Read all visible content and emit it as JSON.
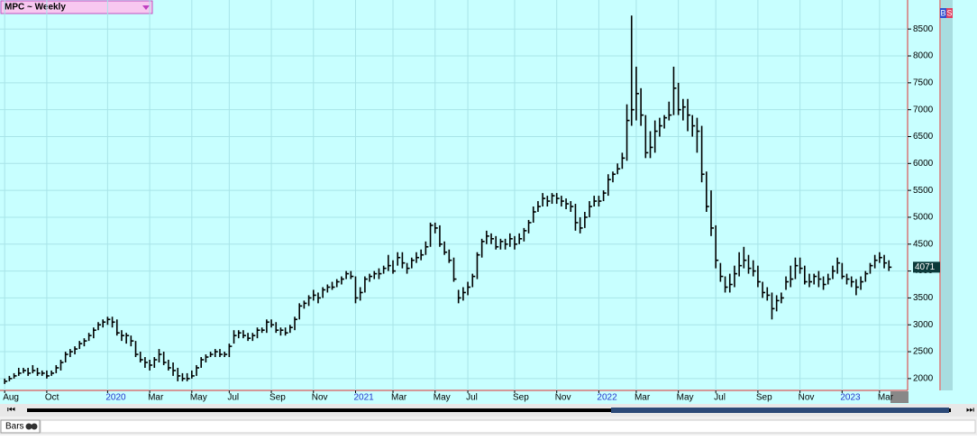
{
  "chart_data": {
    "type": "ohlc",
    "title": "MPC ~ Weekly",
    "chart_style": "Bars",
    "buttons": [
      "B",
      "S"
    ],
    "color": "#000000",
    "background": "#c8ffff",
    "year_label_color": "#2233cc",
    "grid": true,
    "ylim": [
      1780,
      9040
    ],
    "yticks": [
      2000,
      2500,
      3000,
      3500,
      4000,
      4500,
      5000,
      5500,
      6000,
      6500,
      7000,
      7500,
      8000,
      8500
    ],
    "xlim": [
      -1,
      193
    ],
    "xticks": [
      {
        "value": 0,
        "label": "Aug"
      },
      {
        "value": 9,
        "label": "Oct"
      },
      {
        "value": 22,
        "label": "2020"
      },
      {
        "value": 31,
        "label": "Mar"
      },
      {
        "value": 40,
        "label": "May"
      },
      {
        "value": 48,
        "label": "Jul"
      },
      {
        "value": 57,
        "label": "Sep"
      },
      {
        "value": 66,
        "label": "Nov"
      },
      {
        "value": 75,
        "label": "2021"
      },
      {
        "value": 83,
        "label": "Mar"
      },
      {
        "value": 92,
        "label": "May"
      },
      {
        "value": 99,
        "label": "Jul"
      },
      {
        "value": 109,
        "label": "Sep"
      },
      {
        "value": 118,
        "label": "Nov"
      },
      {
        "value": 127,
        "label": "2022"
      },
      {
        "value": 135,
        "label": "Mar"
      },
      {
        "value": 144,
        "label": "May"
      },
      {
        "value": 152,
        "label": "Jul"
      },
      {
        "value": 161,
        "label": "Sep"
      },
      {
        "value": 170,
        "label": "Nov"
      },
      {
        "value": 179,
        "label": "2023"
      },
      {
        "value": 187,
        "label": "Mar"
      }
    ],
    "high": [
      2000,
      2050,
      2100,
      2200,
      2200,
      2200,
      2250,
      2200,
      2150,
      2150,
      2150,
      2250,
      2350,
      2500,
      2550,
      2600,
      2700,
      2750,
      2850,
      2950,
      3050,
      3100,
      3150,
      3150,
      3100,
      2900,
      2850,
      2800,
      2700,
      2500,
      2400,
      2350,
      2400,
      2550,
      2500,
      2350,
      2300,
      2200,
      2100,
      2100,
      2150,
      2250,
      2400,
      2450,
      2500,
      2550,
      2550,
      2500,
      2650,
      2900,
      2900,
      2900,
      2850,
      2850,
      2950,
      2950,
      3100,
      3100,
      3050,
      2950,
      2950,
      3000,
      3150,
      3400,
      3450,
      3550,
      3650,
      3600,
      3700,
      3750,
      3800,
      3850,
      3900,
      4000,
      4000,
      3900,
      3700,
      3900,
      3950,
      4000,
      4050,
      4100,
      4300,
      4200,
      4350,
      4350,
      4150,
      4250,
      4350,
      4400,
      4550,
      4900,
      4900,
      4850,
      4550,
      4400,
      4250,
      3650,
      3700,
      3800,
      3950,
      4350,
      4600,
      4750,
      4700,
      4650,
      4600,
      4600,
      4700,
      4650,
      4700,
      4800,
      4950,
      5200,
      5300,
      5450,
      5400,
      5450,
      5450,
      5400,
      5350,
      5300,
      5250,
      5000,
      5100,
      5300,
      5400,
      5400,
      5500,
      5800,
      5850,
      6000,
      6200,
      7100,
      8750,
      7800,
      7400,
      6900,
      6600,
      6800,
      6850,
      6900,
      7150,
      7800,
      7500,
      7200,
      7200,
      6900,
      6850,
      6700,
      5850,
      5500,
      4850,
      4150,
      3900,
      3950,
      4100,
      4350,
      4450,
      4300,
      4200,
      4100,
      3800,
      3700,
      3600,
      3550,
      3600,
      3900,
      4100,
      4250,
      4250,
      4100,
      3950,
      3950,
      4000,
      3900,
      3950,
      4100,
      4250,
      4150,
      3950,
      3900,
      3850,
      3900,
      4000,
      4150,
      4300,
      4350,
      4300,
      4200
    ],
    "low": [
      1900,
      1950,
      2000,
      2050,
      2100,
      2050,
      2100,
      2050,
      2050,
      2000,
      2050,
      2100,
      2150,
      2300,
      2400,
      2450,
      2550,
      2600,
      2700,
      2750,
      2900,
      2950,
      3000,
      2950,
      2800,
      2700,
      2650,
      2600,
      2400,
      2300,
      2200,
      2150,
      2200,
      2300,
      2250,
      2150,
      2050,
      1950,
      1950,
      1950,
      2000,
      2050,
      2200,
      2300,
      2400,
      2400,
      2400,
      2400,
      2400,
      2650,
      2750,
      2750,
      2700,
      2700,
      2750,
      2850,
      2850,
      2950,
      2850,
      2800,
      2800,
      2850,
      2900,
      3100,
      3300,
      3350,
      3450,
      3400,
      3500,
      3600,
      3650,
      3700,
      3750,
      3850,
      3850,
      3400,
      3450,
      3600,
      3800,
      3850,
      3850,
      3950,
      4000,
      3950,
      4100,
      4050,
      3950,
      4050,
      4150,
      4200,
      4300,
      4450,
      4700,
      4450,
      4300,
      4150,
      3800,
      3400,
      3450,
      3550,
      3700,
      3850,
      4250,
      4500,
      4500,
      4400,
      4400,
      4400,
      4450,
      4400,
      4500,
      4550,
      4700,
      4900,
      5100,
      5200,
      5200,
      5250,
      5250,
      5200,
      5150,
      5100,
      4750,
      4700,
      4800,
      5000,
      5200,
      5200,
      5300,
      5400,
      5650,
      5800,
      5900,
      6050,
      6700,
      6800,
      6700,
      6100,
      6100,
      6200,
      6500,
      6650,
      6800,
      6900,
      6900,
      6800,
      6600,
      6500,
      6200,
      5650,
      5100,
      4650,
      4050,
      3800,
      3600,
      3600,
      3700,
      3900,
      4050,
      3950,
      3900,
      3700,
      3500,
      3450,
      3100,
      3250,
      3400,
      3650,
      3700,
      3850,
      3950,
      3750,
      3700,
      3750,
      3700,
      3650,
      3750,
      3850,
      3950,
      3850,
      3750,
      3700,
      3550,
      3650,
      3800,
      3950,
      4050,
      4150,
      4050,
      4000
    ],
    "close": [
      1950,
      2000,
      2050,
      2100,
      2150,
      2100,
      2150,
      2100,
      2100,
      2050,
      2100,
      2200,
      2300,
      2450,
      2500,
      2550,
      2650,
      2700,
      2800,
      2900,
      3000,
      3050,
      3100,
      3050,
      2850,
      2800,
      2800,
      2700,
      2450,
      2350,
      2300,
      2250,
      2350,
      2450,
      2300,
      2200,
      2150,
      2050,
      2000,
      2000,
      2050,
      2200,
      2350,
      2400,
      2450,
      2500,
      2450,
      2450,
      2600,
      2800,
      2850,
      2800,
      2750,
      2800,
      2900,
      2900,
      3050,
      3000,
      2900,
      2900,
      2850,
      2950,
      3100,
      3350,
      3400,
      3500,
      3550,
      3500,
      3650,
      3700,
      3700,
      3800,
      3850,
      3950,
      3900,
      3500,
      3600,
      3850,
      3900,
      3950,
      3950,
      4050,
      4100,
      4000,
      4250,
      4150,
      4050,
      4200,
      4250,
      4300,
      4450,
      4850,
      4800,
      4500,
      4350,
      4200,
      3850,
      3500,
      3600,
      3700,
      3900,
      4300,
      4550,
      4650,
      4600,
      4450,
      4550,
      4500,
      4600,
      4500,
      4600,
      4750,
      4900,
      5100,
      5200,
      5350,
      5300,
      5400,
      5350,
      5300,
      5250,
      5200,
      4900,
      4800,
      5000,
      5200,
      5300,
      5300,
      5450,
      5700,
      5800,
      5900,
      6100,
      6800,
      7000,
      7300,
      6900,
      6200,
      6300,
      6600,
      6700,
      6850,
      6900,
      7400,
      7000,
      7050,
      6900,
      6700,
      6600,
      5800,
      5200,
      4800,
      4200,
      3900,
      3700,
      3750,
      3950,
      4100,
      4200,
      4050,
      4000,
      3800,
      3600,
      3550,
      3300,
      3450,
      3500,
      3800,
      3850,
      4100,
      4050,
      3800,
      3800,
      3900,
      3850,
      3750,
      3850,
      4000,
      4150,
      3900,
      3850,
      3800,
      3700,
      3800,
      3950,
      4100,
      4200,
      4250,
      4150,
      4071
    ]
  }
}
